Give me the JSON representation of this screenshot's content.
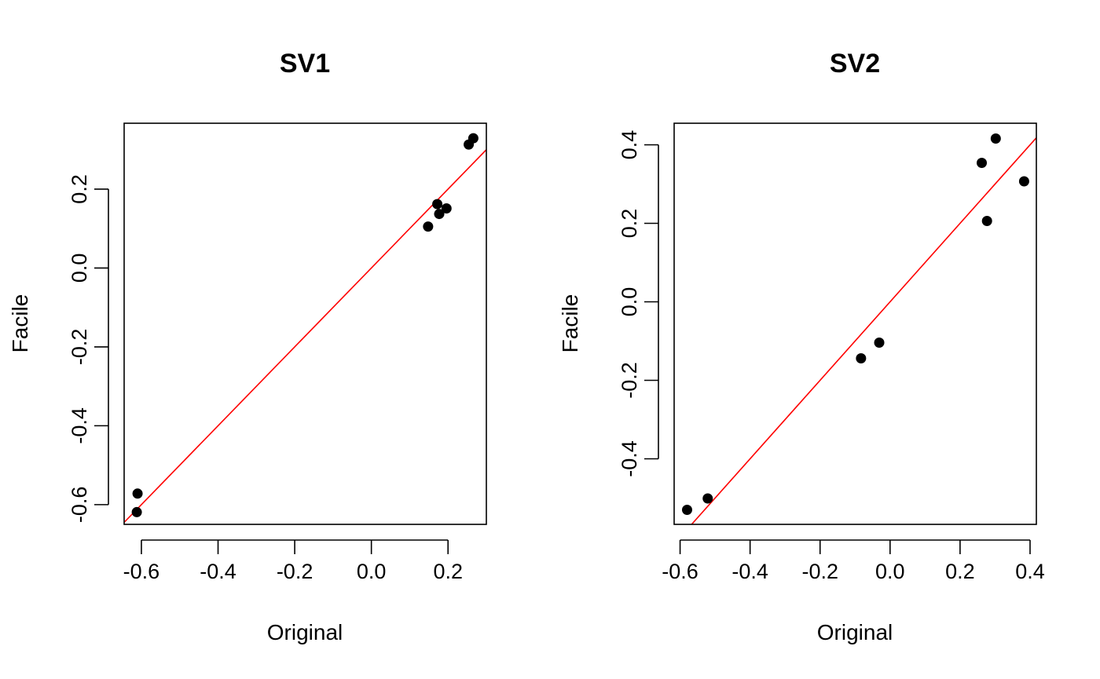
{
  "chart_data": [
    {
      "type": "scatter",
      "title": "SV1",
      "xlabel": "Original",
      "ylabel": "Facile",
      "xlim": [
        -0.645,
        0.3
      ],
      "ylim": [
        -0.65,
        0.367
      ],
      "x_ticks": [
        -0.6,
        -0.4,
        -0.2,
        0.0,
        0.2
      ],
      "x_tick_labels": [
        "-0.6",
        "-0.4",
        "-0.2",
        "0.0",
        "0.2"
      ],
      "y_ticks": [
        -0.6,
        -0.4,
        -0.2,
        0.0,
        0.2
      ],
      "y_tick_labels": [
        "-0.6",
        "-0.4",
        "-0.2",
        "0.0",
        "0.2"
      ],
      "grid": false,
      "reference_line": {
        "intercept": 0,
        "slope": 1,
        "color": "#ff0000"
      },
      "point_color": "#000000",
      "points": [
        {
          "x": -0.61,
          "y": -0.572
        },
        {
          "x": -0.612,
          "y": -0.619
        },
        {
          "x": 0.148,
          "y": 0.105
        },
        {
          "x": 0.172,
          "y": 0.162
        },
        {
          "x": 0.177,
          "y": 0.137
        },
        {
          "x": 0.196,
          "y": 0.151
        },
        {
          "x": 0.254,
          "y": 0.313
        },
        {
          "x": 0.266,
          "y": 0.329
        }
      ]
    },
    {
      "type": "scatter",
      "title": "SV2",
      "xlabel": "Original",
      "ylabel": "Facile",
      "xlim": [
        -0.617,
        0.418
      ],
      "ylim": [
        -0.567,
        0.455
      ],
      "x_ticks": [
        -0.6,
        -0.4,
        -0.2,
        0.0,
        0.2,
        0.4
      ],
      "x_tick_labels": [
        "-0.6",
        "-0.4",
        "-0.2",
        "0.0",
        "0.2",
        "0.4"
      ],
      "y_ticks": [
        -0.4,
        -0.2,
        0.0,
        0.2,
        0.4
      ],
      "y_tick_labels": [
        "-0.4",
        "-0.2",
        "0.0",
        "0.2",
        "0.4"
      ],
      "grid": false,
      "reference_line": {
        "intercept": 0,
        "slope": 1,
        "color": "#ff0000"
      },
      "point_color": "#000000",
      "points": [
        {
          "x": -0.58,
          "y": -0.53
        },
        {
          "x": -0.521,
          "y": -0.501
        },
        {
          "x": -0.083,
          "y": -0.144
        },
        {
          "x": -0.031,
          "y": -0.104
        },
        {
          "x": 0.262,
          "y": 0.354
        },
        {
          "x": 0.277,
          "y": 0.206
        },
        {
          "x": 0.302,
          "y": 0.416
        },
        {
          "x": 0.383,
          "y": 0.307
        }
      ]
    }
  ]
}
